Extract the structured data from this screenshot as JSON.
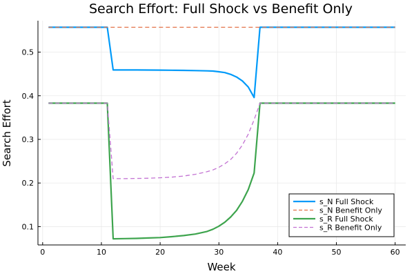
{
  "chart_data": {
    "type": "line",
    "title": "Search Effort: Full Shock vs Benefit Only",
    "xlabel": "Week",
    "ylabel": "Search Effort",
    "xlim": [
      -0.8,
      61.8
    ],
    "ylim": [
      0.058,
      0.572
    ],
    "xticks": [
      0,
      10,
      20,
      30,
      40,
      50,
      60
    ],
    "yticks": [
      0.1,
      0.2,
      0.3,
      0.4,
      0.5
    ],
    "xtick_labels": [
      "0",
      "10",
      "20",
      "30",
      "40",
      "50",
      "60"
    ],
    "ytick_labels": [
      "0.1",
      "0.2",
      "0.3",
      "0.4",
      "0.5"
    ],
    "grid": true,
    "legend_position": "bottom-right",
    "series": [
      {
        "name": "s_N Full Shock",
        "color": "#009af9",
        "dash": "solid",
        "points": [
          [
            1,
            0.557
          ],
          [
            11,
            0.557
          ],
          [
            12,
            0.459
          ],
          [
            14,
            0.459
          ],
          [
            16,
            0.459
          ],
          [
            18,
            0.4589
          ],
          [
            20,
            0.4587
          ],
          [
            22,
            0.4585
          ],
          [
            24,
            0.4582
          ],
          [
            26,
            0.4577
          ],
          [
            28,
            0.457
          ],
          [
            29,
            0.4565
          ],
          [
            30,
            0.455
          ],
          [
            31,
            0.453
          ],
          [
            32,
            0.449
          ],
          [
            33,
            0.443
          ],
          [
            34,
            0.434
          ],
          [
            35,
            0.42
          ],
          [
            36,
            0.396
          ],
          [
            37,
            0.557
          ],
          [
            60,
            0.557
          ]
        ]
      },
      {
        "name": "s_N Benefit Only",
        "color": "#e26f46",
        "dash": "dashed",
        "points": [
          [
            1,
            0.557
          ],
          [
            60,
            0.557
          ]
        ]
      },
      {
        "name": "s_R Full Shock",
        "color": "#3da44d",
        "dash": "solid",
        "points": [
          [
            1,
            0.383
          ],
          [
            11,
            0.383
          ],
          [
            12,
            0.072
          ],
          [
            14,
            0.0725
          ],
          [
            16,
            0.073
          ],
          [
            18,
            0.074
          ],
          [
            20,
            0.075
          ],
          [
            22,
            0.077
          ],
          [
            24,
            0.0795
          ],
          [
            26,
            0.083
          ],
          [
            28,
            0.089
          ],
          [
            29,
            0.094
          ],
          [
            30,
            0.101
          ],
          [
            31,
            0.11
          ],
          [
            32,
            0.122
          ],
          [
            33,
            0.137
          ],
          [
            34,
            0.158
          ],
          [
            35,
            0.185
          ],
          [
            36,
            0.223
          ],
          [
            37,
            0.383
          ],
          [
            60,
            0.383
          ]
        ]
      },
      {
        "name": "s_R Benefit Only",
        "color": "#c271d2",
        "dash": "dashed",
        "points": [
          [
            1,
            0.383
          ],
          [
            11,
            0.383
          ],
          [
            12,
            0.21
          ],
          [
            14,
            0.21
          ],
          [
            16,
            0.2105
          ],
          [
            18,
            0.211
          ],
          [
            20,
            0.212
          ],
          [
            22,
            0.2135
          ],
          [
            24,
            0.216
          ],
          [
            26,
            0.22
          ],
          [
            28,
            0.226
          ],
          [
            29,
            0.23
          ],
          [
            30,
            0.236
          ],
          [
            31,
            0.244
          ],
          [
            32,
            0.254
          ],
          [
            33,
            0.268
          ],
          [
            34,
            0.287
          ],
          [
            35,
            0.312
          ],
          [
            36,
            0.345
          ],
          [
            37,
            0.383
          ],
          [
            60,
            0.383
          ]
        ]
      }
    ]
  }
}
